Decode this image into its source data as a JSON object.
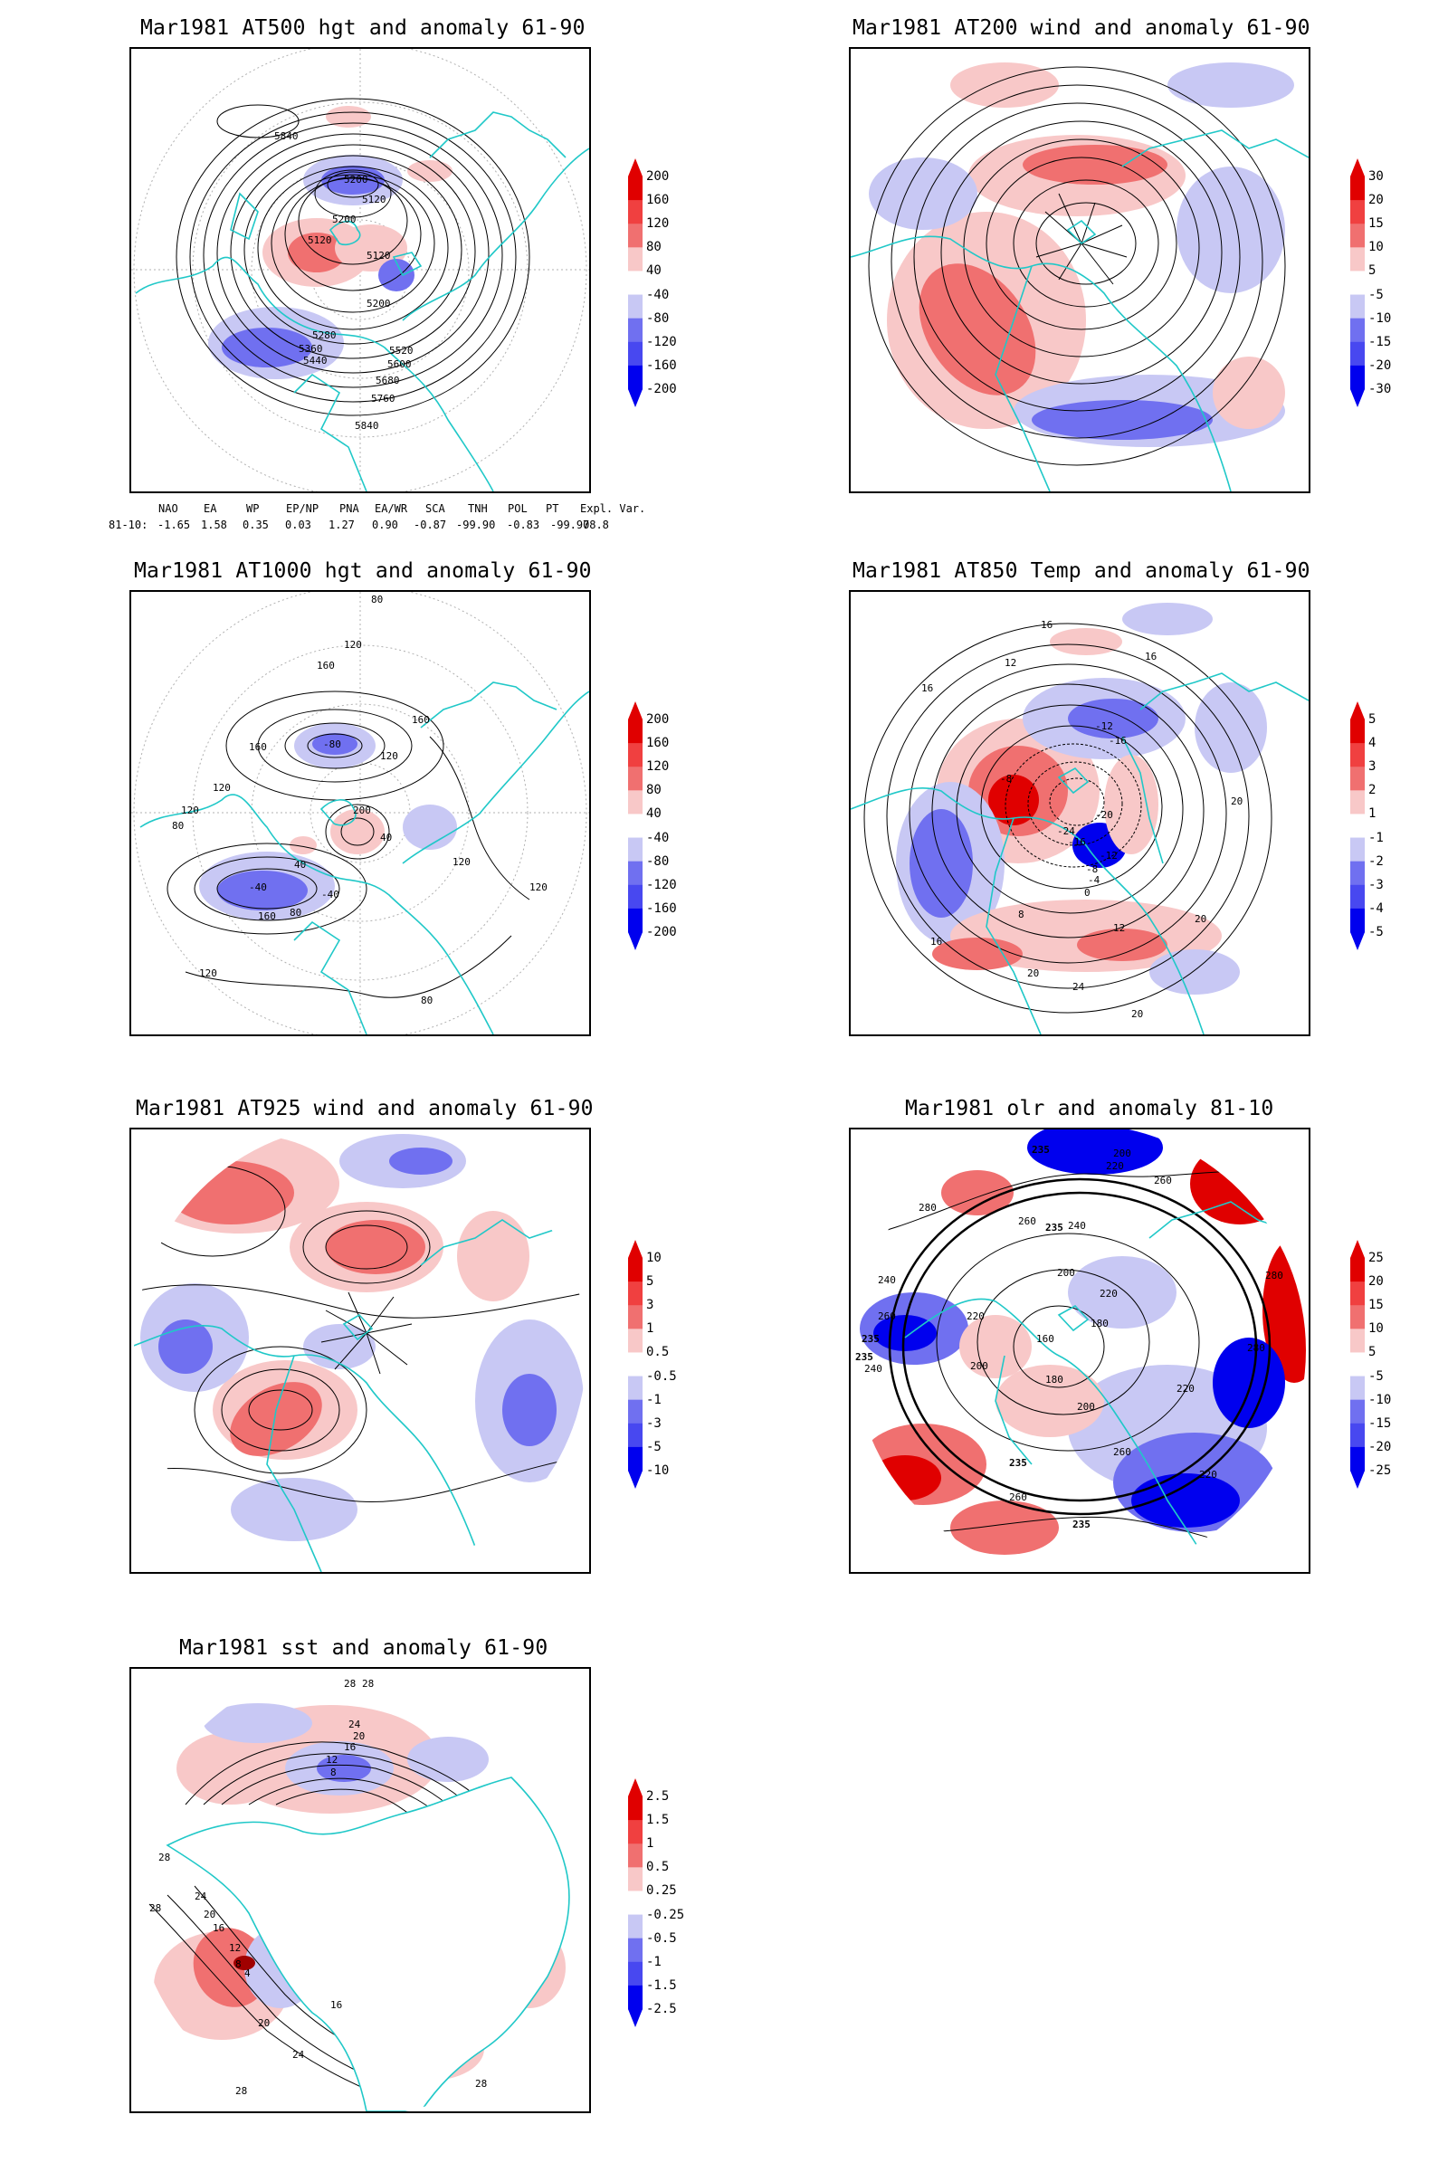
{
  "panels": [
    {
      "title": "Mar1981 AT500 hgt and anomaly 61-90",
      "colorbar": [
        "200",
        "160",
        "120",
        "80",
        "40",
        "-40",
        "-80",
        "-120",
        "-160",
        "-200"
      ],
      "contour_labels": [
        "5840",
        "5200",
        "5120",
        "5200",
        "5120",
        "5120",
        "5200",
        "5280",
        "5360",
        "5440",
        "5520",
        "5600",
        "5680",
        "5760",
        "5840"
      ]
    },
    {
      "title": "Mar1981 AT200 wind and anomaly 61-90",
      "colorbar": [
        "30",
        "20",
        "15",
        "10",
        "5",
        "-5",
        "-10",
        "-15",
        "-20",
        "-30"
      ],
      "contour_labels": []
    },
    {
      "title": "Mar1981 AT1000 hgt and anomaly 61-90",
      "colorbar": [
        "200",
        "160",
        "120",
        "80",
        "40",
        "-40",
        "-80",
        "-120",
        "-160",
        "-200"
      ],
      "contour_labels": [
        "80",
        "120",
        "160",
        "160",
        "-80",
        "120",
        "160",
        "120",
        "200",
        "120",
        "80",
        "40",
        "-40",
        "40",
        "120",
        "80",
        "-40",
        "160",
        "120",
        "80",
        "120"
      ]
    },
    {
      "title": "Mar1981 AT850 Temp and anomaly 61-90",
      "colorbar": [
        "5",
        "4",
        "3",
        "2",
        "1",
        "-1",
        "-2",
        "-3",
        "-4",
        "-5"
      ],
      "contour_labels": [
        "16",
        "12",
        "16",
        "16",
        "-12",
        "-16",
        "-8",
        "-24",
        "-16",
        "-20",
        "-12",
        "-8",
        "-4",
        "0",
        "12",
        "8",
        "16",
        "20",
        "20",
        "24",
        "20",
        "20"
      ]
    },
    {
      "title": "Mar1981 AT925 wind and anomaly 61-90",
      "colorbar": [
        "10",
        "5",
        "3",
        "1",
        "0.5",
        "-0.5",
        "-1",
        "-3",
        "-5",
        "-10"
      ],
      "contour_labels": []
    },
    {
      "title": "Mar1981 olr and anomaly 81-10",
      "colorbar": [
        "25",
        "20",
        "15",
        "10",
        "5",
        "-5",
        "-10",
        "-15",
        "-20",
        "-25"
      ],
      "contour_labels": [
        "235",
        "200",
        "220",
        "260",
        "280",
        "235",
        "240",
        "260",
        "200",
        "220",
        "180",
        "160",
        "200",
        "220",
        "240",
        "280",
        "235",
        "260",
        "240",
        "235",
        "220",
        "280",
        "235",
        "260",
        "200",
        "180",
        "260",
        "235",
        "220"
      ]
    },
    {
      "title": "Mar1981 sst and anomaly 61-90",
      "colorbar": [
        "2.5",
        "1.5",
        "1",
        "0.5",
        "0.25",
        "-0.25",
        "-0.5",
        "-1",
        "-1.5",
        "-2.5"
      ],
      "contour_labels": [
        "28",
        "28",
        "24",
        "20",
        "16",
        "12",
        "8",
        "28",
        "28",
        "24",
        "20",
        "16",
        "12",
        "8",
        "4",
        "16",
        "20",
        "24",
        "28",
        "28"
      ]
    }
  ],
  "teleconnections": {
    "headers": [
      "NAO",
      "EA",
      "WP",
      "EP/NP",
      "PNA",
      "EA/WR",
      "SCA",
      "TNH",
      "POL",
      "PT",
      "Expl. Var."
    ],
    "row_label": "81-10:",
    "values": [
      "-1.65",
      "1.58",
      "0.35",
      "0.03",
      "1.27",
      "0.90",
      "-0.87",
      "-99.90",
      "-0.83",
      "-99.90",
      "78.8"
    ]
  },
  "colors": {
    "pos_strong": "#e00000",
    "pos_mid": "#f07070",
    "pos_light": "#f8c8c8",
    "neg_light": "#c8c8f4",
    "neg_mid": "#7070f0",
    "neg_strong": "#0000ee",
    "coast": "#20c8c8"
  }
}
